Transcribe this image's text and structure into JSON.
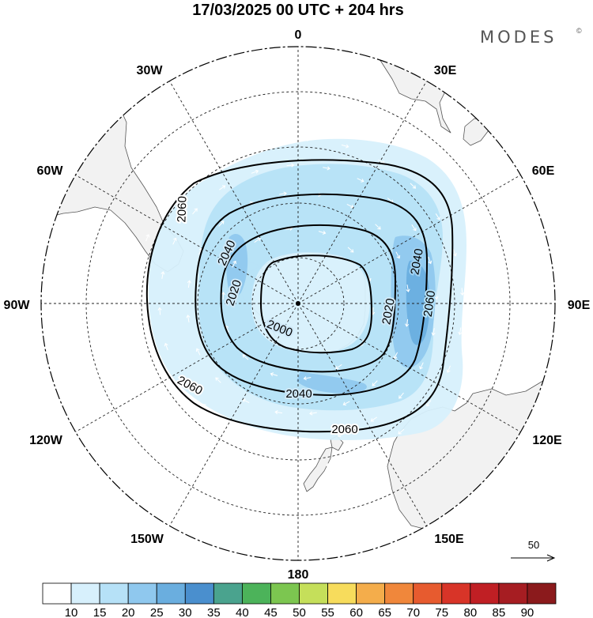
{
  "title": "17/03/2025  00 UTC  + 204 hrs",
  "brand": "MODES",
  "brand_mark": "©",
  "longitude_labels": [
    "0",
    "30E",
    "60E",
    "90E",
    "120E",
    "150E",
    "180",
    "150W",
    "120W",
    "90W",
    "60W",
    "30W"
  ],
  "contours": [
    {
      "label": "2000",
      "value": 2000
    },
    {
      "label": "2020",
      "value": 2020
    },
    {
      "label": "2040",
      "value": 2040
    },
    {
      "label": "2060",
      "value": 2060
    }
  ],
  "contour_labels": [
    "2000",
    "2020",
    "2020",
    "2040",
    "2040",
    "2040",
    "2060",
    "2060",
    "2060",
    "2060"
  ],
  "wind_reference": {
    "label": "50",
    "value": 50
  },
  "colorbar": {
    "levels": [
      "10",
      "15",
      "20",
      "25",
      "30",
      "35",
      "40",
      "45",
      "50",
      "55",
      "60",
      "65",
      "70",
      "75",
      "80",
      "85",
      "90"
    ],
    "colors": [
      "#ffffff",
      "#d7f0fc",
      "#b6e1f7",
      "#8fc8ee",
      "#6aaedf",
      "#4a8fce",
      "#4aa38e",
      "#4cb35a",
      "#7cc650",
      "#c5df5a",
      "#f7dc5c",
      "#f4ad4b",
      "#f0873b",
      "#e75b2f",
      "#d83428",
      "#c01f24",
      "#a61d22",
      "#8b1a1c"
    ]
  },
  "colors": {
    "land": "#f2f2f2",
    "coast": "#555555",
    "grid": "#222222",
    "contour": "#000000",
    "wind_arrow": "#ffffff"
  }
}
